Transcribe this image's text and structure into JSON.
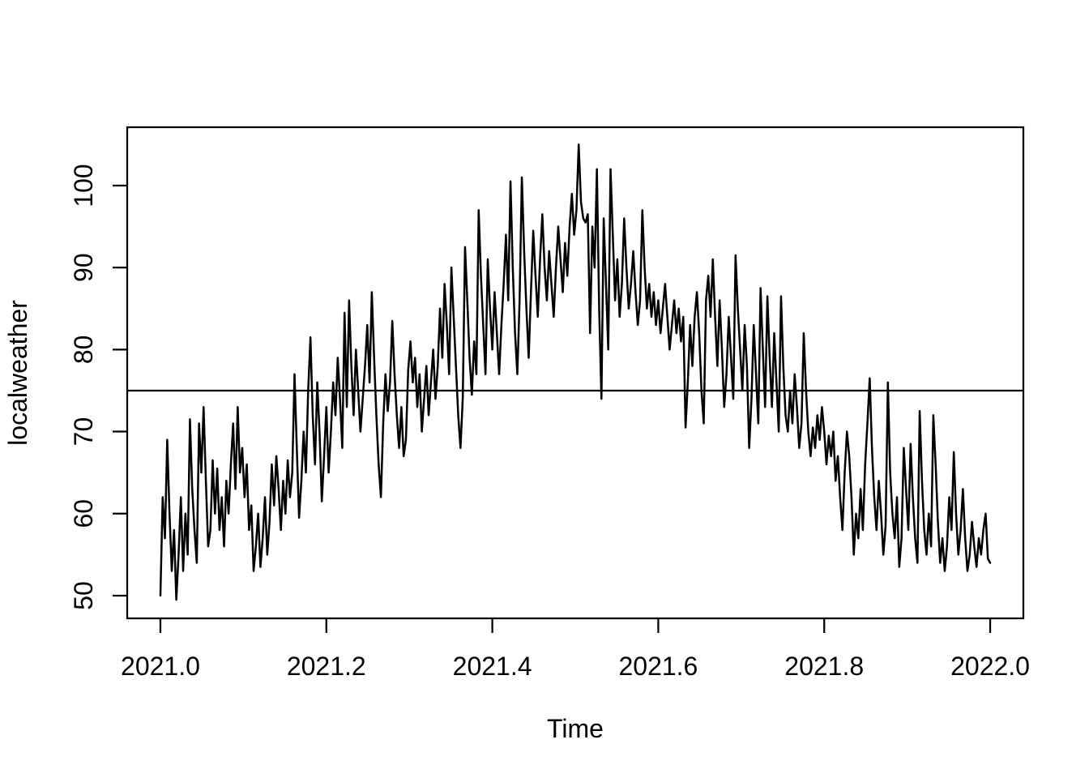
{
  "chart_data": {
    "type": "line",
    "title": "",
    "xlabel": "Time",
    "ylabel": "localweather",
    "grid": false,
    "legend": "none",
    "background_color": "#ffffff",
    "line_color": "#000000",
    "x_start": 2021.0,
    "x_end": 2022.0,
    "points_per_year": 365,
    "xlim": [
      2020.96,
      2022.04
    ],
    "ylim": [
      47.23,
      107.11
    ],
    "x_ticks": {
      "values": [
        2021.0,
        2021.2,
        2021.4,
        2021.6,
        2021.8,
        2022.0
      ],
      "labels": [
        "2021.0",
        "2021.2",
        "2021.4",
        "2021.6",
        "2021.8",
        "2022.0"
      ]
    },
    "y_ticks": {
      "values": [
        50,
        60,
        70,
        80,
        90,
        100
      ],
      "labels": [
        "50",
        "60",
        "70",
        "80",
        "90",
        "100"
      ]
    },
    "reference_line_y": 75,
    "series": [
      {
        "name": "localweather",
        "values": [
          50,
          62,
          57,
          69,
          60,
          53,
          58,
          49.5,
          55,
          62,
          53,
          60,
          55,
          71.5,
          63,
          58,
          54,
          71,
          65,
          73,
          64,
          56,
          58,
          66.5,
          60,
          65.5,
          58,
          62,
          56,
          64,
          60,
          66,
          71,
          63,
          73,
          65,
          68,
          62,
          66,
          58,
          61,
          53,
          56,
          60,
          53.5,
          57,
          62,
          55,
          59,
          66,
          61,
          67,
          63,
          58,
          64,
          60,
          66.5,
          62,
          65,
          77,
          68,
          59.5,
          64,
          70,
          65,
          75,
          81.5,
          72,
          66,
          76,
          70,
          61.5,
          67,
          73,
          65,
          70,
          76,
          72,
          79,
          74,
          68,
          84.5,
          73,
          86,
          78,
          72,
          80,
          75,
          70,
          74,
          78,
          83,
          76,
          87,
          79,
          72,
          66,
          62,
          71,
          77,
          72.5,
          76,
          83.5,
          77,
          72,
          68,
          73,
          67,
          69,
          77.5,
          81,
          76,
          79,
          73,
          77,
          70,
          74,
          78,
          72,
          76,
          80,
          74,
          78,
          85,
          79,
          88,
          83,
          77,
          90,
          84,
          78,
          72,
          68,
          74,
          92.5,
          86,
          79,
          74.5,
          81,
          77,
          97,
          89,
          83,
          77,
          91,
          85,
          80,
          87,
          82,
          77,
          83,
          88,
          94,
          86,
          100.5,
          90,
          82,
          77,
          86,
          101,
          92,
          85,
          79,
          87,
          94.5,
          89,
          84,
          91,
          96.5,
          90,
          86,
          92,
          88,
          84,
          90,
          95,
          91,
          87,
          93,
          89,
          95,
          99,
          94,
          97,
          105,
          98,
          96,
          95.5,
          96.5,
          82,
          95,
          90,
          102,
          85,
          74,
          96,
          88,
          80,
          102,
          94,
          86,
          91,
          84,
          88,
          96,
          90,
          85,
          88,
          92,
          87,
          83,
          86,
          97,
          90,
          85,
          88,
          84,
          87,
          83,
          86,
          82,
          85,
          88,
          84,
          80,
          83,
          86,
          82,
          85,
          81,
          84,
          70.5,
          76,
          83,
          78,
          84,
          87,
          82,
          75,
          71,
          86,
          89,
          84,
          91,
          84,
          78,
          86,
          80,
          73,
          77,
          84,
          79,
          74,
          91.5,
          85,
          80,
          75,
          83,
          78,
          68,
          74,
          83,
          77,
          71,
          87.5,
          80,
          73,
          86.5,
          79,
          73,
          82,
          76,
          70,
          86.5,
          78,
          72,
          70,
          75,
          71,
          77,
          73,
          68,
          71,
          82,
          75,
          70,
          67,
          70.5,
          68,
          72,
          69,
          73,
          70,
          66,
          69.5,
          67,
          70,
          64,
          67,
          62,
          58,
          65,
          70,
          67,
          62,
          55,
          60,
          57,
          63,
          58,
          66,
          71,
          76.5,
          68,
          62,
          58,
          64,
          60,
          55,
          58.5,
          76,
          65,
          60,
          57,
          62,
          53.5,
          57,
          68,
          63,
          58,
          68.5,
          62,
          57,
          54,
          72.5,
          64,
          58,
          55,
          60,
          56,
          72,
          66,
          59,
          54,
          57,
          53,
          56,
          62,
          58,
          67.5,
          60,
          55,
          58,
          63,
          57,
          53,
          55,
          59,
          56,
          53.5,
          57,
          55,
          58,
          60,
          54.5,
          54
        ]
      }
    ]
  }
}
